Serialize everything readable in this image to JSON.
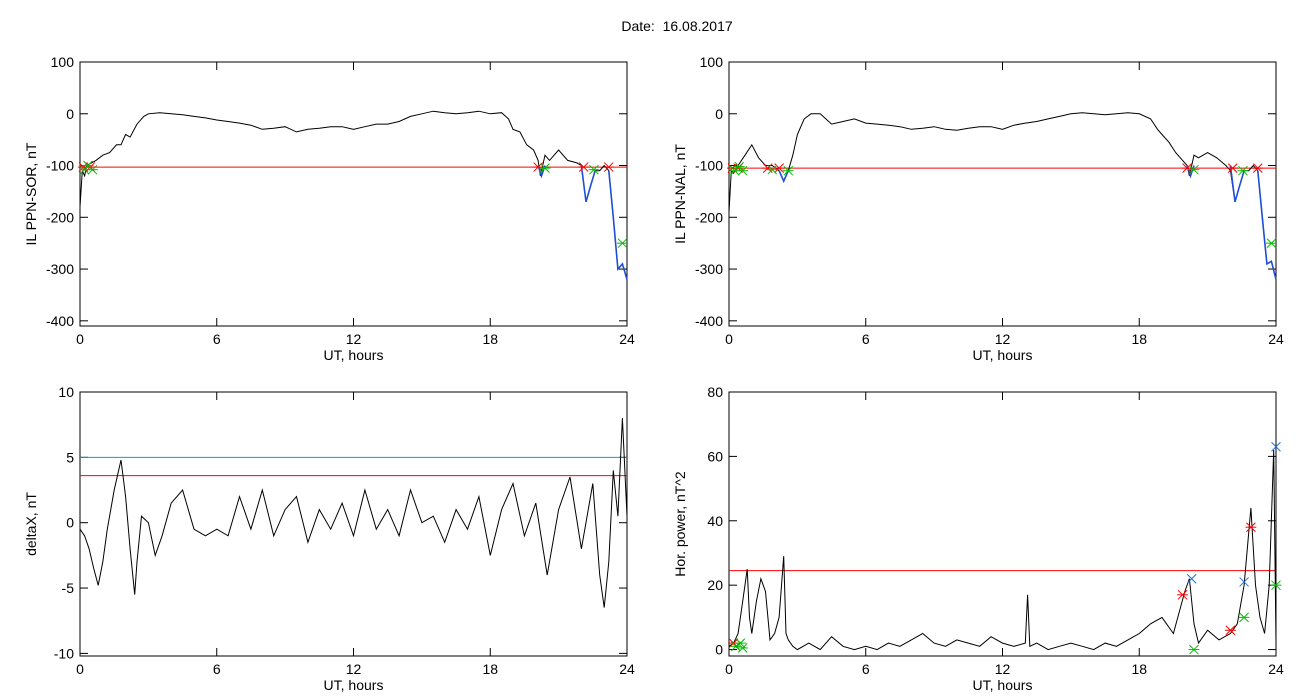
{
  "page": {
    "title": "Date:  16.08.2017"
  },
  "colors": {
    "signal": "#000000",
    "threshold": "#ff0000",
    "threshold2": "#00aaaa",
    "highlight": "#1f4fd6",
    "marker_red": "#ff0000",
    "marker_green": "#00bb00",
    "marker_blue": "#1f6fd6"
  },
  "chart_data": [
    {
      "id": "p1",
      "type": "line",
      "xlabel": "UT, hours",
      "ylabel": "IL PPN-SOR, nT",
      "xlim": [
        0,
        24
      ],
      "ylim": [
        -410,
        100
      ],
      "xticks": [
        0,
        6,
        12,
        18,
        24
      ],
      "yticks": [
        100,
        0,
        -100,
        -200,
        -300,
        -400
      ],
      "hlines": [
        {
          "y": -103,
          "color": "threshold"
        }
      ],
      "series": [
        {
          "color": "signal",
          "x": [
            0,
            0.1,
            0.2,
            0.3,
            0.5,
            0.7,
            1.0,
            1.3,
            1.6,
            1.8,
            2.0,
            2.2,
            2.5,
            2.8,
            3.0,
            3.5,
            4.0,
            4.5,
            5.0,
            5.5,
            6.0,
            6.5,
            7.0,
            7.5,
            8.0,
            8.5,
            9.0,
            9.5,
            10.0,
            10.5,
            11.0,
            11.5,
            12.0,
            12.5,
            13.0,
            13.5,
            14.0,
            14.5,
            15.0,
            15.5,
            16.0,
            16.5,
            17.0,
            17.5,
            18.0,
            18.5,
            18.8,
            19.0,
            19.3,
            19.6,
            19.9,
            20.1,
            20.2,
            20.4,
            20.6,
            21.0,
            21.4,
            21.8,
            22.0,
            22.2,
            22.4,
            22.6,
            22.8,
            23.0,
            23.2,
            23.4,
            23.6,
            23.8,
            24.0
          ],
          "y": [
            -180,
            -110,
            -120,
            -100,
            -95,
            -90,
            -80,
            -75,
            -60,
            -60,
            -40,
            -45,
            -20,
            -5,
            0,
            2,
            0,
            -2,
            -5,
            -8,
            -12,
            -15,
            -18,
            -22,
            -30,
            -28,
            -25,
            -35,
            -30,
            -28,
            -25,
            -25,
            -30,
            -25,
            -20,
            -20,
            -15,
            -5,
            0,
            5,
            2,
            0,
            2,
            5,
            0,
            2,
            -10,
            -30,
            -35,
            -60,
            -70,
            -90,
            -120,
            -80,
            -90,
            -70,
            -90,
            -95,
            -100,
            -170,
            -140,
            -110,
            -110,
            -100,
            -110,
            -200,
            -300,
            -290,
            -320
          ]
        }
      ],
      "highlights": [
        {
          "x": [
            20.1,
            20.25,
            20.4
          ],
          "y": [
            -100,
            -120,
            -100
          ]
        },
        {
          "x": [
            22.0,
            22.2,
            22.4,
            22.6
          ],
          "y": [
            -100,
            -170,
            -140,
            -110
          ]
        },
        {
          "x": [
            23.2,
            23.4,
            23.6,
            23.8,
            24.0
          ],
          "y": [
            -110,
            -200,
            -300,
            -290,
            -320
          ]
        }
      ],
      "markers": [
        {
          "symbol": "asterisk",
          "color": "marker_red",
          "x": [
            0.15,
            0.45,
            20.1,
            22.1,
            23.2
          ],
          "y": [
            -103,
            -103,
            -103,
            -103,
            -103
          ]
        },
        {
          "symbol": "asterisk",
          "color": "marker_green",
          "x": [
            0.2,
            0.35,
            0.55,
            20.4,
            22.55,
            23.8
          ],
          "y": [
            -108,
            -100,
            -108,
            -105,
            -108,
            -250
          ]
        }
      ]
    },
    {
      "id": "p2",
      "type": "line",
      "xlabel": "UT, hours",
      "ylabel": "IL PPN-NAL, nT",
      "xlim": [
        0,
        24
      ],
      "ylim": [
        -410,
        100
      ],
      "xticks": [
        0,
        6,
        12,
        18,
        24
      ],
      "yticks": [
        100,
        0,
        -100,
        -200,
        -300,
        -400
      ],
      "hlines": [
        {
          "y": -105,
          "color": "threshold"
        }
      ],
      "series": [
        {
          "color": "signal",
          "x": [
            0,
            0.1,
            0.2,
            0.4,
            0.7,
            1.0,
            1.3,
            1.6,
            1.9,
            2.2,
            2.4,
            2.6,
            2.8,
            3.0,
            3.3,
            3.6,
            4.0,
            4.5,
            5.0,
            5.5,
            6.0,
            6.5,
            7.0,
            7.5,
            8.0,
            8.5,
            9.0,
            9.5,
            10.0,
            10.5,
            11.0,
            11.5,
            12.0,
            12.5,
            13.0,
            13.5,
            14.0,
            14.5,
            15.0,
            15.5,
            16.0,
            16.5,
            17.0,
            17.5,
            18.0,
            18.5,
            18.8,
            19.0,
            19.3,
            19.6,
            19.9,
            20.1,
            20.2,
            20.4,
            20.6,
            21.0,
            21.4,
            21.8,
            22.0,
            22.2,
            22.4,
            22.6,
            22.8,
            23.0,
            23.2,
            23.4,
            23.6,
            23.8,
            24.0
          ],
          "y": [
            -190,
            -110,
            -115,
            -100,
            -80,
            -60,
            -85,
            -100,
            -100,
            -110,
            -130,
            -110,
            -80,
            -40,
            -10,
            0,
            0,
            -20,
            -15,
            -10,
            -18,
            -20,
            -22,
            -25,
            -30,
            -28,
            -25,
            -30,
            -32,
            -28,
            -25,
            -25,
            -30,
            -22,
            -18,
            -15,
            -10,
            -5,
            0,
            2,
            0,
            -2,
            0,
            2,
            0,
            -10,
            -30,
            -40,
            -55,
            -75,
            -90,
            -100,
            -120,
            -80,
            -85,
            -75,
            -85,
            -100,
            -110,
            -170,
            -140,
            -110,
            -110,
            -100,
            -110,
            -200,
            -290,
            -285,
            -320
          ]
        }
      ],
      "highlights": [
        {
          "x": [
            2.2,
            2.4,
            2.6
          ],
          "y": [
            -110,
            -130,
            -110
          ]
        },
        {
          "x": [
            20.1,
            20.25,
            20.4
          ],
          "y": [
            -100,
            -120,
            -100
          ]
        },
        {
          "x": [
            22.0,
            22.2,
            22.4,
            22.6
          ],
          "y": [
            -100,
            -170,
            -140,
            -110
          ]
        },
        {
          "x": [
            23.2,
            23.4,
            23.6,
            23.8,
            24.0
          ],
          "y": [
            -110,
            -200,
            -290,
            -285,
            -320
          ]
        }
      ],
      "markers": [
        {
          "symbol": "asterisk",
          "color": "marker_red",
          "x": [
            0.15,
            0.4,
            1.7,
            2.2,
            20.1,
            22.1,
            23.2
          ],
          "y": [
            -105,
            -105,
            -105,
            -105,
            -105,
            -105,
            -105
          ]
        },
        {
          "symbol": "asterisk",
          "color": "marker_green",
          "x": [
            0.25,
            0.45,
            0.6,
            1.9,
            2.6,
            20.4,
            22.55,
            23.8
          ],
          "y": [
            -110,
            -102,
            -110,
            -108,
            -110,
            -108,
            -110,
            -250
          ]
        }
      ]
    },
    {
      "id": "p3",
      "type": "line",
      "xlabel": "UT, hours",
      "ylabel": "deltaX, nT",
      "xlim": [
        0,
        24
      ],
      "ylim": [
        -10.2,
        10
      ],
      "xticks": [
        0,
        6,
        12,
        18,
        24
      ],
      "yticks": [
        10,
        5,
        0,
        -5,
        -10
      ],
      "hlines": [
        {
          "y": 5.0,
          "color": "threshold2"
        },
        {
          "y": 3.6,
          "color": "threshold"
        }
      ],
      "series": [
        {
          "color": "signal",
          "x": [
            0,
            0.2,
            0.4,
            0.6,
            0.8,
            1.0,
            1.2,
            1.5,
            1.8,
            2.0,
            2.2,
            2.4,
            2.5,
            2.7,
            3.0,
            3.3,
            3.6,
            4.0,
            4.5,
            5.0,
            5.5,
            6.0,
            6.5,
            7.0,
            7.5,
            8.0,
            8.5,
            9.0,
            9.5,
            10.0,
            10.5,
            11.0,
            11.5,
            12.0,
            12.5,
            13.0,
            13.5,
            14.0,
            14.5,
            15.0,
            15.5,
            16.0,
            16.5,
            17.0,
            17.5,
            18.0,
            18.5,
            19.0,
            19.5,
            20.0,
            20.5,
            21.0,
            21.5,
            22.0,
            22.5,
            22.8,
            23.0,
            23.2,
            23.4,
            23.6,
            23.8,
            24.0
          ],
          "y": [
            -0.5,
            -1.0,
            -2.0,
            -3.5,
            -4.8,
            -3.0,
            -0.5,
            2.5,
            4.8,
            2.0,
            -2.0,
            -5.5,
            -3.0,
            0.5,
            0.0,
            -2.5,
            -1.0,
            1.5,
            2.5,
            -0.5,
            -1.0,
            -0.5,
            -1.0,
            2.0,
            -0.5,
            2.5,
            -1.0,
            1.0,
            2.0,
            -1.5,
            1.0,
            -0.5,
            1.5,
            -1.0,
            2.5,
            -0.5,
            1.0,
            -1.0,
            2.5,
            0.0,
            0.5,
            -1.5,
            1.0,
            -0.5,
            2.0,
            -2.5,
            1.0,
            3.0,
            -1.0,
            1.5,
            -4.0,
            1.0,
            3.5,
            -2.0,
            3.0,
            -4.0,
            -6.5,
            -3.0,
            4.0,
            0.5,
            8.0,
            0.5
          ]
        }
      ],
      "highlights": [],
      "markers": []
    },
    {
      "id": "p4",
      "type": "line",
      "xlabel": "UT, hours",
      "ylabel": "Hor. power, nT^2",
      "xlim": [
        0,
        24
      ],
      "ylim": [
        -2,
        80
      ],
      "xticks": [
        0,
        6,
        12,
        18,
        24
      ],
      "yticks": [
        80,
        60,
        40,
        20,
        0
      ],
      "hlines": [
        {
          "y": 24.5,
          "color": "threshold"
        }
      ],
      "series": [
        {
          "color": "signal",
          "x": [
            0,
            0.2,
            0.4,
            0.6,
            0.8,
            0.9,
            1.0,
            1.2,
            1.4,
            1.6,
            1.8,
            2.0,
            2.2,
            2.4,
            2.5,
            2.6,
            2.8,
            3.0,
            3.5,
            4.0,
            4.5,
            5.0,
            5.5,
            6.0,
            6.5,
            7.0,
            7.5,
            8.0,
            8.5,
            9.0,
            9.5,
            10.0,
            10.5,
            11.0,
            11.5,
            12.0,
            12.5,
            13.0,
            13.1,
            13.2,
            13.5,
            14.0,
            14.5,
            15.0,
            15.5,
            16.0,
            16.5,
            17.0,
            17.5,
            18.0,
            18.5,
            19.0,
            19.5,
            20.0,
            20.2,
            20.4,
            20.6,
            21.0,
            21.5,
            22.0,
            22.3,
            22.6,
            22.9,
            23.1,
            23.3,
            23.5,
            23.7,
            23.9,
            24.0
          ],
          "y": [
            1,
            2,
            5,
            15,
            25,
            10,
            5,
            15,
            22,
            18,
            3,
            5,
            10,
            29,
            5,
            3,
            1,
            0,
            2,
            0,
            4,
            1,
            0,
            1,
            0,
            2,
            1,
            3,
            5,
            2,
            1,
            3,
            2,
            1,
            4,
            2,
            1,
            2,
            17,
            1,
            2,
            0,
            1,
            2,
            1,
            0,
            2,
            1,
            3,
            5,
            8,
            10,
            5,
            18,
            22,
            8,
            2,
            6,
            3,
            5,
            8,
            20,
            44,
            20,
            10,
            5,
            20,
            62,
            2
          ]
        }
      ],
      "highlights": [],
      "markers": [
        {
          "symbol": "asterisk",
          "color": "marker_red",
          "x": [
            0.2,
            19.9,
            22.0,
            22.9
          ],
          "y": [
            2,
            17,
            6,
            38
          ]
        },
        {
          "symbol": "asterisk",
          "color": "marker_green",
          "x": [
            0.3,
            0.5,
            0.6,
            20.4,
            22.6,
            24.0
          ],
          "y": [
            1,
            2,
            0.5,
            0,
            10,
            20
          ]
        },
        {
          "symbol": "cross",
          "color": "marker_blue",
          "x": [
            20.3,
            22.6,
            24.0
          ],
          "y": [
            22,
            21,
            63
          ]
        }
      ]
    }
  ]
}
